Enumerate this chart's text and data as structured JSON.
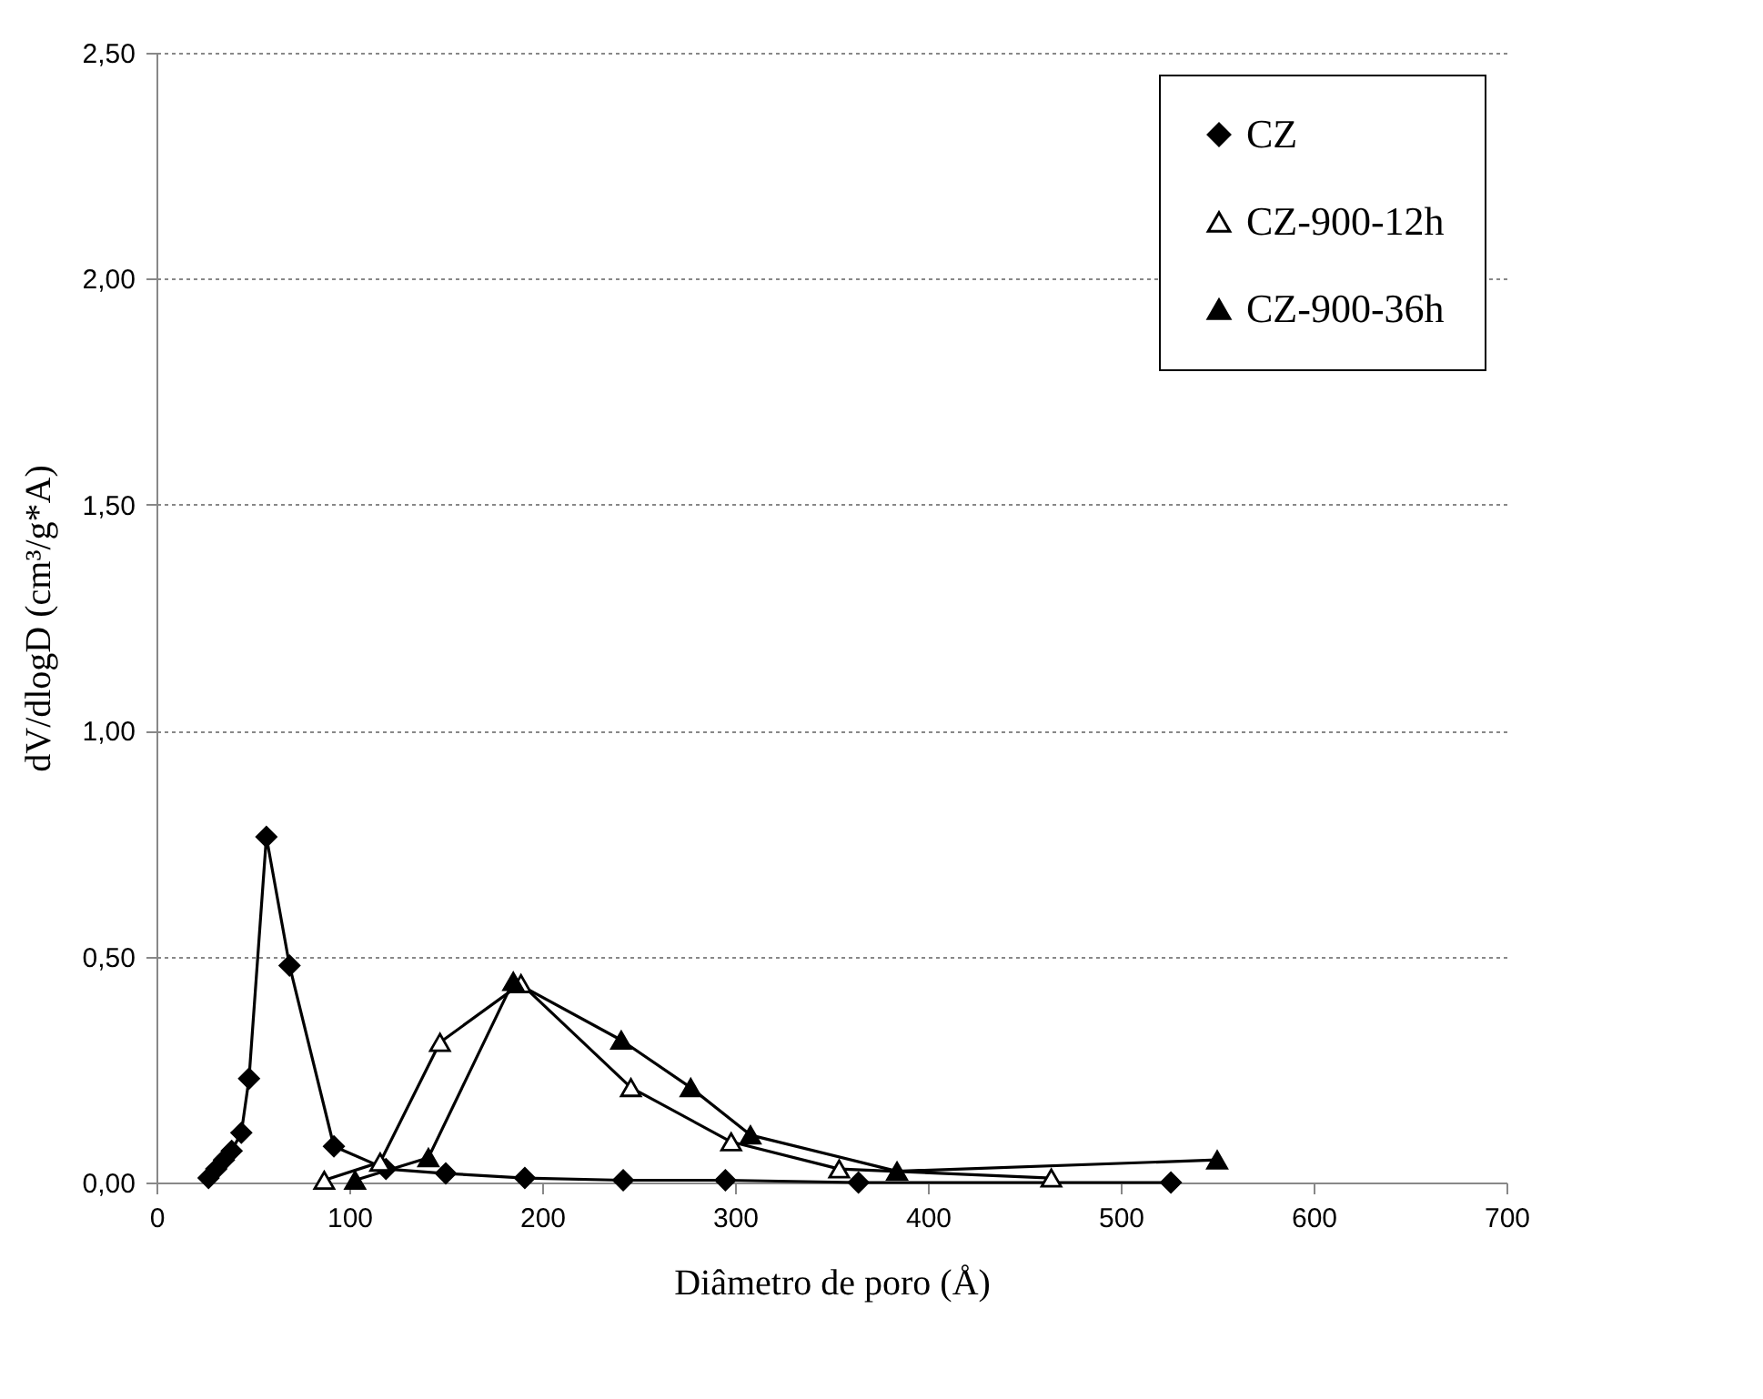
{
  "chart_data": {
    "type": "line",
    "xlabel": "Diâmetro de poro (Å)",
    "ylabel": "dV/dlogD (cm³/g*A)",
    "xlim": [
      0,
      700
    ],
    "xticks": [
      0,
      100,
      200,
      300,
      400,
      500,
      600,
      700
    ],
    "ylim": [
      0,
      2.5
    ],
    "yticks": [
      {
        "value": 0,
        "label": "0,00"
      },
      {
        "value": 0.5,
        "label": "0,50"
      },
      {
        "value": 1,
        "label": "1,00"
      },
      {
        "value": 1.5,
        "label": "1,50"
      },
      {
        "value": 2,
        "label": "2,00"
      },
      {
        "value": 2.5,
        "label": "2,50"
      }
    ],
    "grid": "y",
    "legend": "top right",
    "line_style": "solid",
    "series": [
      {
        "name": "CZ",
        "color": "#000000",
        "marker": "diamond",
        "x": [
          27,
          31,
          35,
          39,
          44,
          48,
          57,
          69,
          92,
          119,
          150,
          191,
          242,
          295,
          364,
          526
        ],
        "values": [
          0.01,
          0.03,
          0.05,
          0.07,
          0.11,
          0.23,
          0.765,
          0.48,
          0.08,
          0.03,
          0.02,
          0.01,
          0.005,
          0.005,
          0,
          0
        ]
      },
      {
        "name": "CZ-900-12h",
        "color": "#000000",
        "marker": "triangle",
        "x": [
          87,
          116,
          147,
          189,
          246,
          298,
          354,
          464
        ],
        "values": [
          0.005,
          0.045,
          0.31,
          0.44,
          0.21,
          0.09,
          0.03,
          0.01
        ]
      },
      {
        "name": "CZ-900-36h",
        "color": "#000000",
        "marker": "triangle",
        "x": [
          103,
          141,
          185,
          241,
          277,
          308,
          384,
          550
        ],
        "values": [
          0.005,
          0.055,
          0.445,
          0.315,
          0.21,
          0.105,
          0.025,
          0.05
        ]
      }
    ]
  }
}
